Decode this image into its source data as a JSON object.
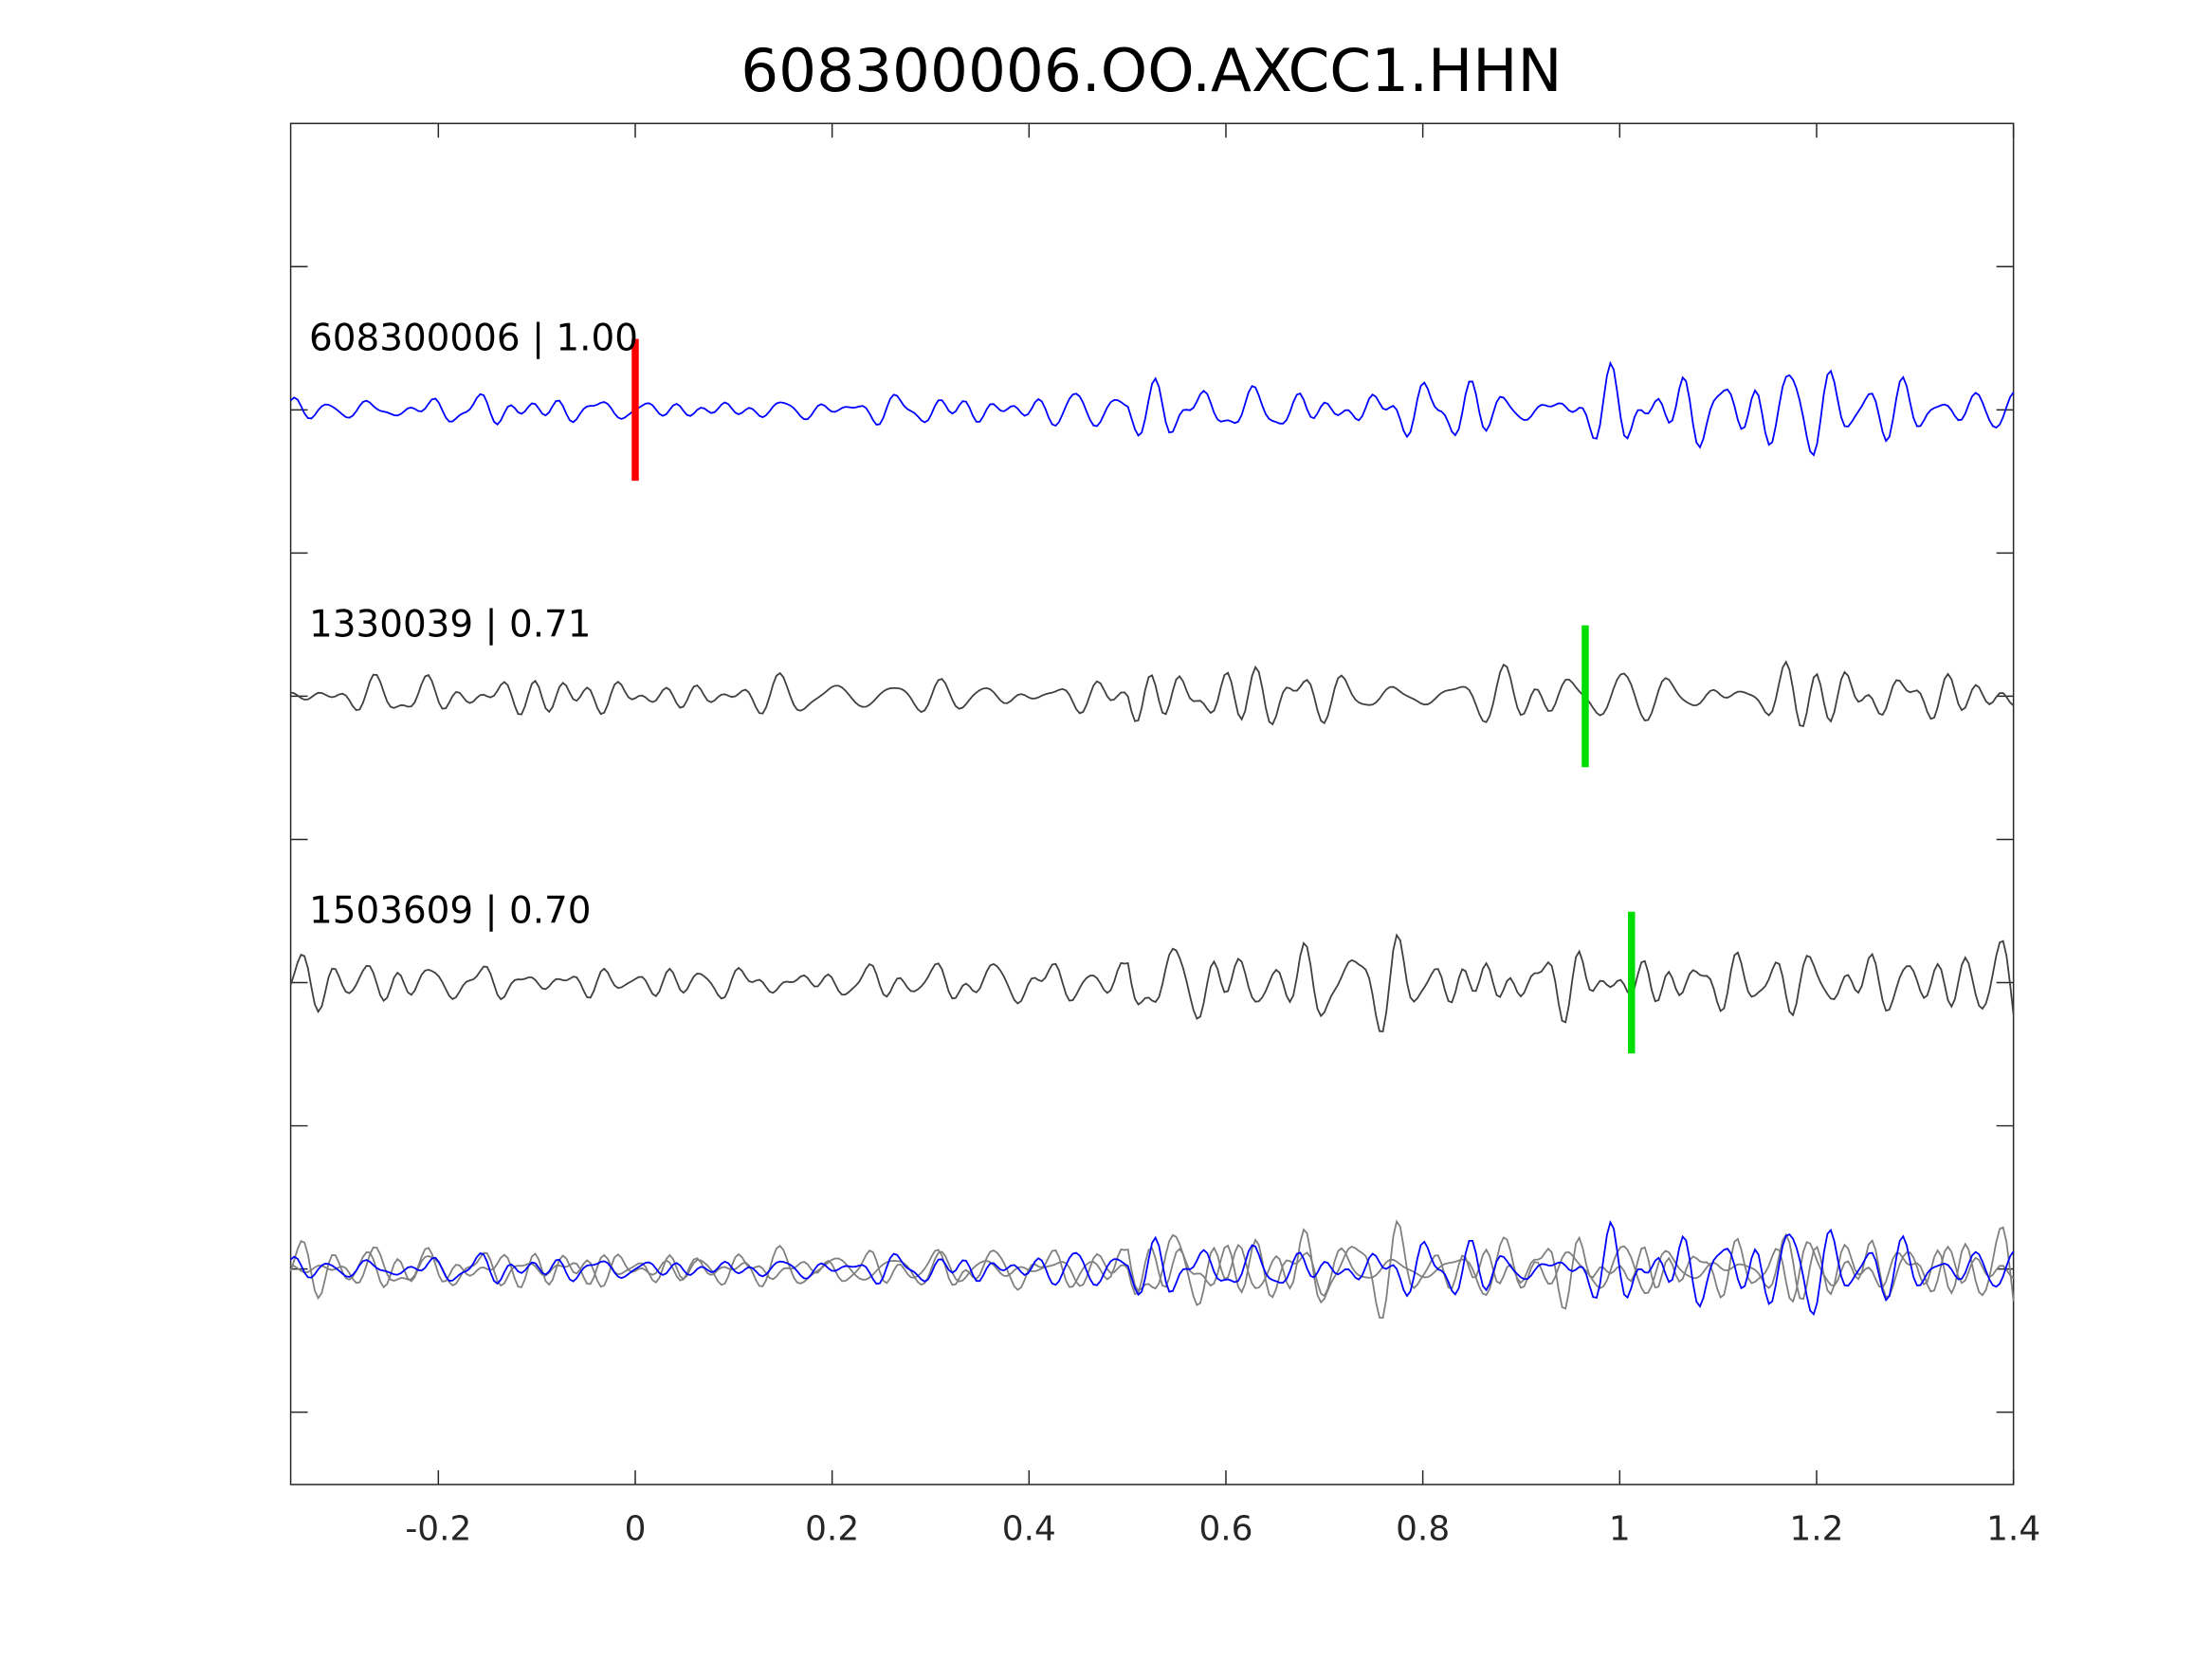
{
  "chart_data": {
    "type": "line",
    "title": "608300006.OO.AXCC1.HHN",
    "xlabel": "",
    "ylabel": "",
    "xlim": [
      -0.35,
      1.4
    ],
    "x_ticks": [
      -0.2,
      0,
      0.2,
      0.4,
      0.6,
      0.8,
      1,
      1.2,
      1.4
    ],
    "x_tick_labels": [
      "-0.2",
      "0",
      "0.2",
      "0.4",
      "0.6",
      "0.8",
      "1",
      "1.2",
      "1.4"
    ],
    "grid": false,
    "traces": [
      {
        "label": "608300006 | 1.00",
        "color": "#0000ff",
        "pick_time": 0.0,
        "pick_color": "#ff0000",
        "seed": 11,
        "amp": 1.0
      },
      {
        "label": "1330039 | 0.71",
        "color": "#404040",
        "pick_time": 0.965,
        "pick_color": "#00dd00",
        "seed": 23,
        "amp": 1.1
      },
      {
        "label": "1503609 | 0.70",
        "color": "#404040",
        "pick_time": 1.012,
        "pick_color": "#00dd00",
        "seed": 37,
        "amp": 1.2
      }
    ],
    "overlay": {
      "description_label": "",
      "colors": [
        "#0000ff",
        "#808080",
        "#808080"
      ]
    },
    "colors": {
      "axes": "#262626",
      "tick_label": "#262626"
    }
  }
}
